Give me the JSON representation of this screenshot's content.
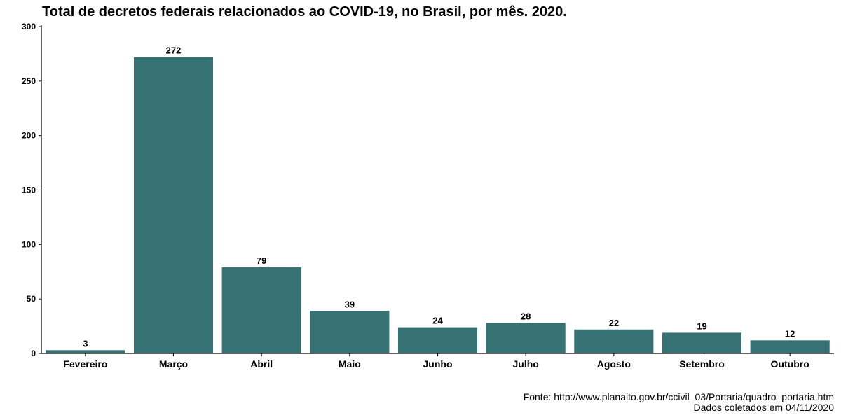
{
  "chart_data": {
    "type": "bar",
    "title": "Total de decretos federais relacionados ao COVID-19, no Brasil, por mês. 2020.",
    "xlabel": "",
    "ylabel": "",
    "categories": [
      "Fevereiro",
      "Março",
      "Abril",
      "Maio",
      "Junho",
      "Julho",
      "Agosto",
      "Setembro",
      "Outubro"
    ],
    "values": [
      3,
      272,
      79,
      39,
      24,
      28,
      22,
      19,
      12
    ],
    "ylim": [
      0,
      300
    ],
    "yticks": [
      0,
      50,
      100,
      150,
      200,
      250,
      300
    ],
    "grid": false,
    "legend": "none",
    "bar_color": "#367274"
  },
  "caption": {
    "source": "Fonte: http://www.planalto.gov.br/ccivil_03/Portaria/quadro_portaria.htm",
    "collected": "Dados coletados em 04/11/2020"
  }
}
